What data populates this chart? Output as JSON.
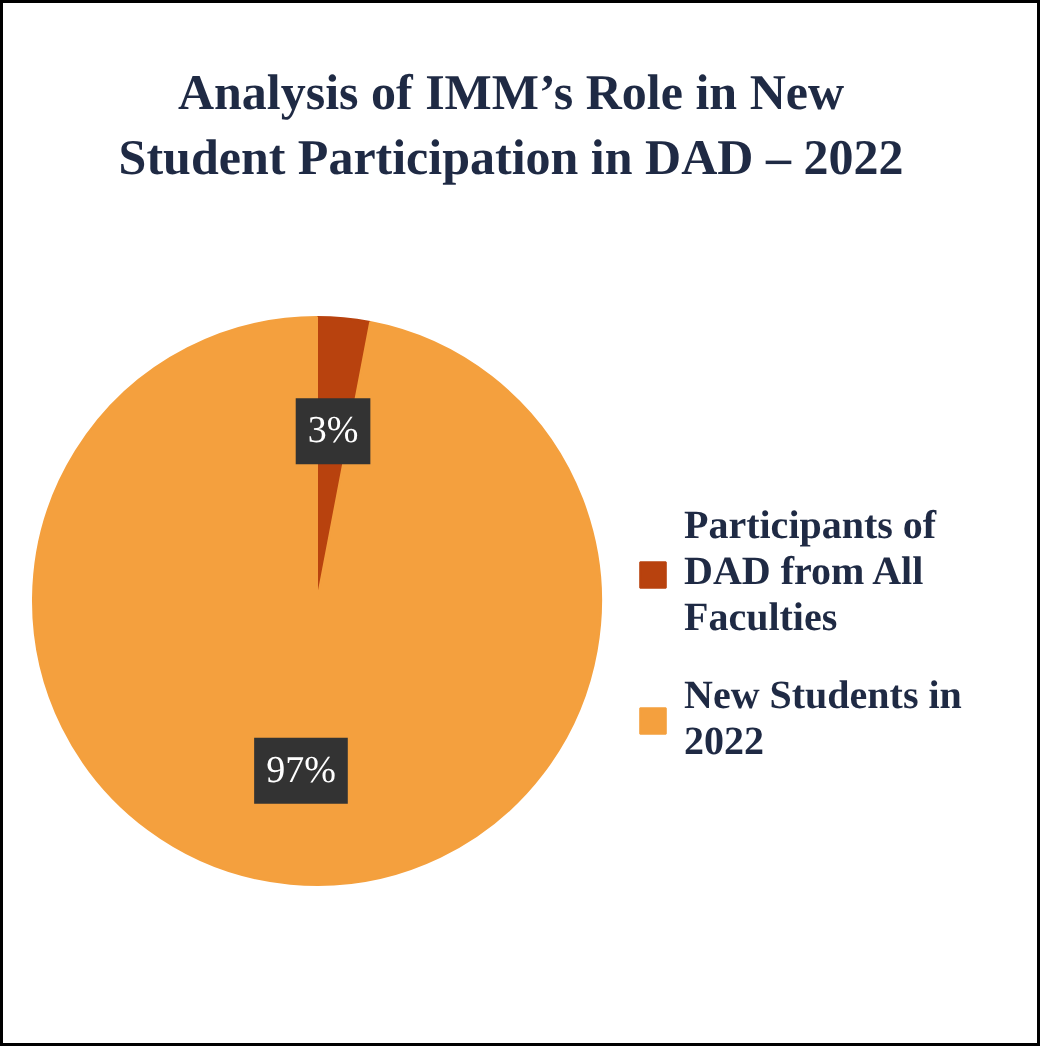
{
  "chart_data": {
    "type": "pie",
    "title": "Analysis of IMM’s Role in New\nStudent Participation in DAD – 2022",
    "categories": [
      "Participants of DAD from All Faculties",
      "New Students in 2022"
    ],
    "values": [
      3,
      97
    ],
    "colors": [
      "#b8420e",
      "#f4a03e"
    ],
    "value_labels": [
      "3%",
      "97%"
    ],
    "legend": "right"
  }
}
